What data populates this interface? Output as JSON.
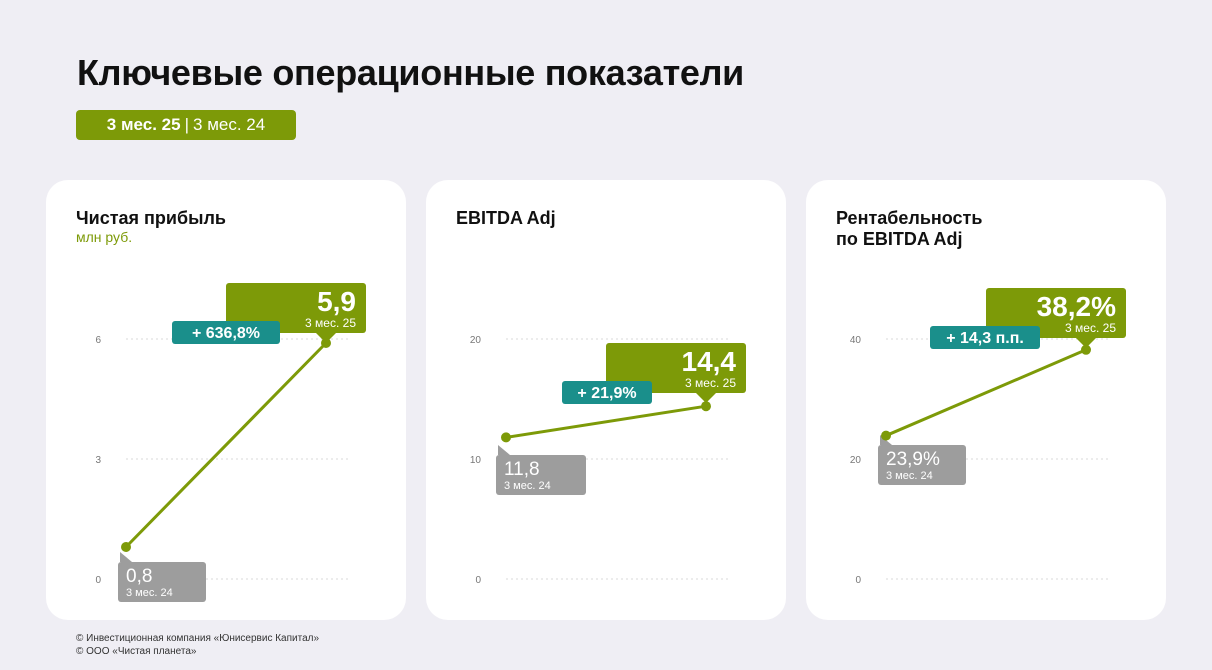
{
  "page": {
    "title": "Ключевые операционные показатели",
    "period": {
      "current": "3 мес. 25",
      "separator": "|",
      "previous": "3 мес. 24"
    },
    "footer": [
      "© Инвестиционная компания «Юнисервис Капитал»",
      "© ООО «Чистая планета»"
    ]
  },
  "colors": {
    "background": "#efeef4",
    "line": "#7d9a08",
    "current_callout": "#7d9a08",
    "previous_callout": "#9d9d9d",
    "change_badge": "#1a8f8b",
    "gridline": "#d9d9d9",
    "tick_text": "#777777"
  },
  "chart_data": [
    {
      "type": "line",
      "title": "Чистая прибыль",
      "subtitle": "млн руб.",
      "categories": [
        "3 мес. 24",
        "3 мес. 25"
      ],
      "values": [
        0.8,
        5.9
      ],
      "value_labels": [
        "0,8",
        "5,9"
      ],
      "point_captions": [
        "3 мес. 24",
        "3 мес. 25"
      ],
      "change_label": "+ 636,8%",
      "ylim": [
        0,
        6
      ],
      "yticks": [
        0,
        3,
        6
      ],
      "ytick_labels": [
        "0",
        "3",
        "6"
      ],
      "grid": true
    },
    {
      "type": "line",
      "title": "EBITDA Adj",
      "subtitle": "",
      "categories": [
        "3 мес. 24",
        "3 мес. 25"
      ],
      "values": [
        11.8,
        14.4
      ],
      "value_labels": [
        "11,8",
        "14,4"
      ],
      "point_captions": [
        "3 мес. 24",
        "3 мес. 25"
      ],
      "change_label": "+ 21,9%",
      "ylim": [
        0,
        20
      ],
      "yticks": [
        0,
        10,
        20
      ],
      "ytick_labels": [
        "0",
        "10",
        "20"
      ],
      "grid": true
    },
    {
      "type": "line",
      "title": "Рентабельность\nпо EBITDA Adj",
      "subtitle": "",
      "categories": [
        "3 мес. 24",
        "3 мес. 25"
      ],
      "values": [
        23.9,
        38.2
      ],
      "value_labels": [
        "23,9%",
        "38,2%"
      ],
      "point_captions": [
        "3 мес. 24",
        "3 мес. 25"
      ],
      "change_label": "+ 14,3 п.п.",
      "ylim": [
        0,
        40
      ],
      "yticks": [
        0,
        20,
        40
      ],
      "ytick_labels": [
        "0",
        "20",
        "40"
      ],
      "grid": true
    }
  ]
}
